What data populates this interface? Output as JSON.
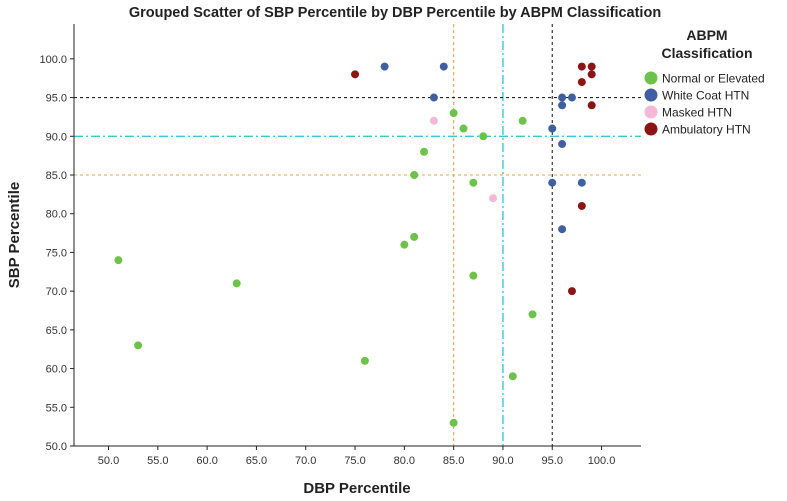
{
  "chart_data": {
    "type": "scatter",
    "title": "Grouped Scatter of SBP Percentile by DBP Percentile by ABPM Classification",
    "xlabel": "DBP Percentile",
    "ylabel": "SBP Percentile",
    "xlim": [
      46.5,
      104
    ],
    "ylim": [
      50,
      104.5
    ],
    "xticks": [
      50,
      55,
      60,
      65,
      70,
      75,
      80,
      85,
      90,
      95,
      100
    ],
    "xtick_labels": [
      "50.0",
      "55.0",
      "60.0",
      "65.0",
      "70.0",
      "75.0",
      "80.0",
      "85.0",
      "90.0",
      "95.0",
      "100.0"
    ],
    "yticks": [
      50,
      55,
      60,
      65,
      70,
      75,
      80,
      85,
      90,
      95,
      100
    ],
    "ytick_labels": [
      "50.0",
      "55.0",
      "60.0",
      "65.0",
      "70.0",
      "75.0",
      "80.0",
      "85.0",
      "90.0",
      "95.0",
      "100.0"
    ],
    "grid": false,
    "legend": {
      "title": "ABPM Classification",
      "title_lines": [
        "ABPM",
        "Classification"
      ],
      "position": "top-right"
    },
    "reference_lines": [
      {
        "axis": "x",
        "value": 85,
        "style": "dashed",
        "color": "#e0a94a"
      },
      {
        "axis": "x",
        "value": 90,
        "style": "dashdot",
        "color": "#3fc7cf"
      },
      {
        "axis": "x",
        "value": 95,
        "style": "dashed",
        "color": "#222222"
      },
      {
        "axis": "y",
        "value": 85,
        "style": "dashed",
        "color": "#e0a94a"
      },
      {
        "axis": "y",
        "value": 90,
        "style": "dashdot",
        "color": "#3fc7cf"
      },
      {
        "axis": "y",
        "value": 95,
        "style": "dashed",
        "color": "#222222"
      }
    ],
    "series": [
      {
        "name": "Normal or Elevated",
        "color": "#6cc24a",
        "points": [
          [
            51,
            74
          ],
          [
            53,
            63
          ],
          [
            63,
            71
          ],
          [
            76,
            61
          ],
          [
            80,
            76
          ],
          [
            81,
            77
          ],
          [
            81,
            85
          ],
          [
            82,
            88
          ],
          [
            85,
            93
          ],
          [
            86,
            91
          ],
          [
            87,
            84
          ],
          [
            87,
            72
          ],
          [
            88,
            90
          ],
          [
            85,
            53
          ],
          [
            91,
            59
          ],
          [
            92,
            92
          ],
          [
            93,
            67
          ]
        ]
      },
      {
        "name": "White Coat HTN",
        "color": "#3f5fa0",
        "points": [
          [
            78,
            99
          ],
          [
            84,
            99
          ],
          [
            83,
            95
          ],
          [
            95,
            91
          ],
          [
            95,
            84
          ],
          [
            96,
            95
          ],
          [
            96,
            94
          ],
          [
            97,
            95
          ],
          [
            96,
            89
          ],
          [
            96,
            78
          ],
          [
            98,
            84
          ]
        ]
      },
      {
        "name": "Masked HTN",
        "color": "#f4b8d6",
        "points": [
          [
            83,
            92
          ],
          [
            89,
            82
          ]
        ]
      },
      {
        "name": "Ambulatory HTN",
        "color": "#8b1515",
        "points": [
          [
            75,
            98
          ],
          [
            98,
            99
          ],
          [
            99,
            99
          ],
          [
            99,
            98
          ],
          [
            98,
            97
          ],
          [
            99,
            94
          ],
          [
            98,
            81
          ],
          [
            97,
            70
          ]
        ]
      }
    ]
  }
}
